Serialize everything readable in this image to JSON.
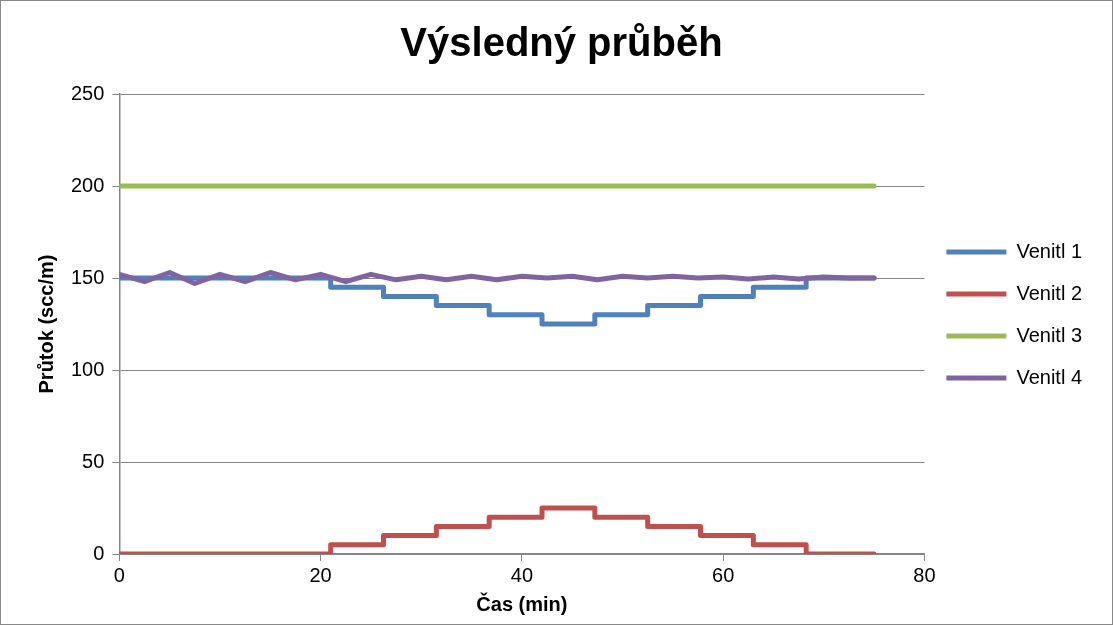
{
  "chart_data": {
    "type": "step",
    "title": "Výsledný průběh",
    "xlabel": "Čas (min)",
    "ylabel": "Průtok (scc/m)",
    "xlim": [
      0,
      80
    ],
    "xticks": [
      0,
      20,
      40,
      60,
      80
    ],
    "ylim": [
      0,
      250
    ],
    "yticks": [
      0,
      50,
      100,
      150,
      200,
      250
    ],
    "grid": "y",
    "legend": "right",
    "marker": "none",
    "line_style": "solid",
    "series": [
      {
        "name": "Venitl 1",
        "color": "#4f81bd",
        "x": [
          0,
          21,
          26.25,
          31.5,
          36.75,
          42,
          47.25,
          52.5,
          57.75,
          63,
          68.25,
          75
        ],
        "values": [
          150,
          145,
          140,
          135,
          130,
          125,
          130,
          135,
          140,
          145,
          150,
          150
        ]
      },
      {
        "name": "Venitl 2",
        "color": "#c0504d",
        "x": [
          0,
          21,
          26.25,
          31.5,
          36.75,
          42,
          47.25,
          52.5,
          57.75,
          63,
          68.25,
          75
        ],
        "values": [
          0,
          5,
          10,
          15,
          20,
          25,
          20,
          15,
          10,
          5,
          0,
          0
        ]
      },
      {
        "name": "Venitl 3",
        "color": "#9bbb59",
        "x": [
          0,
          75
        ],
        "values": [
          200,
          200
        ]
      },
      {
        "name": "Venitl 4",
        "type": "line",
        "color": "#8064a2",
        "x": [
          0,
          2.5,
          5,
          7.5,
          10,
          12.5,
          15,
          17.5,
          20,
          22.5,
          25,
          27.5,
          30,
          32.5,
          35,
          37.5,
          40,
          42.5,
          45,
          47.5,
          50,
          52.5,
          55,
          57.5,
          60,
          62.5,
          65,
          67.5,
          70,
          72.5,
          75
        ],
        "values": [
          152,
          148,
          153,
          147,
          152,
          148,
          153,
          149,
          152,
          148,
          152,
          149,
          151,
          149,
          151,
          149,
          151,
          150,
          151,
          149,
          151,
          150,
          151,
          150,
          150.5,
          149.5,
          150.5,
          149.5,
          150.5,
          150,
          150
        ]
      }
    ]
  }
}
